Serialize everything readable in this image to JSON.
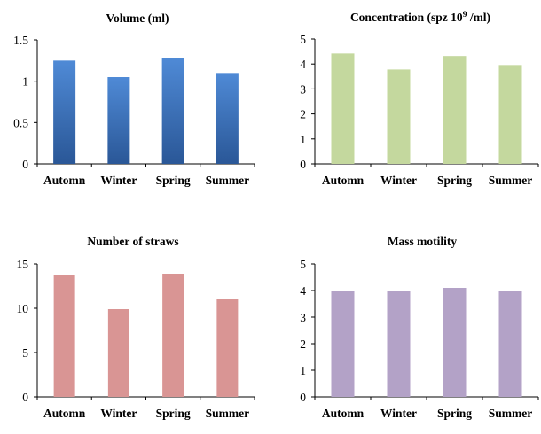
{
  "chart_data": [
    {
      "type": "bar",
      "title": "Volume (ml)",
      "categories": [
        "Automn",
        "Winter",
        "Spring",
        "Summer"
      ],
      "values": [
        1.25,
        1.05,
        1.28,
        1.1
      ],
      "yticks": [
        "0",
        "0.5",
        "1",
        "1.5"
      ],
      "ylim": [
        0,
        1.5
      ],
      "xlabel": "",
      "ylabel": "",
      "color_top": "#4f8ad6",
      "color_bottom": "#2a5797"
    },
    {
      "type": "bar",
      "title": "Concentration (spz 10",
      "title_sup": "9",
      "title_tail": " /ml)",
      "categories": [
        "Automn",
        "Winter",
        "Spring",
        "Summer"
      ],
      "values": [
        4.42,
        3.78,
        4.32,
        3.96
      ],
      "yticks": [
        "0",
        "1",
        "2",
        "3",
        "4",
        "5"
      ],
      "ylim": [
        0,
        5
      ],
      "xlabel": "",
      "ylabel": "",
      "color_top": "#c4d89e",
      "color_bottom": "#c4d89e"
    },
    {
      "type": "bar",
      "title": "Number of straws",
      "categories": [
        "Automn",
        "Winter",
        "Spring",
        "Summer"
      ],
      "values": [
        13.8,
        9.9,
        13.9,
        11.0
      ],
      "yticks": [
        "0",
        "5",
        "10",
        "15"
      ],
      "ylim": [
        0,
        15
      ],
      "xlabel": "",
      "ylabel": "",
      "color_top": "#d99594",
      "color_bottom": "#d99594"
    },
    {
      "type": "bar",
      "title": "Mass motility",
      "categories": [
        "Automn",
        "Winter",
        "Spring",
        "Summer"
      ],
      "values": [
        4.0,
        4.0,
        4.1,
        4.0
      ],
      "yticks": [
        "0",
        "1",
        "2",
        "3",
        "4",
        "5"
      ],
      "ylim": [
        0,
        5
      ],
      "xlabel": "",
      "ylabel": "",
      "color_top": "#b3a2c7",
      "color_bottom": "#b3a2c7"
    }
  ]
}
